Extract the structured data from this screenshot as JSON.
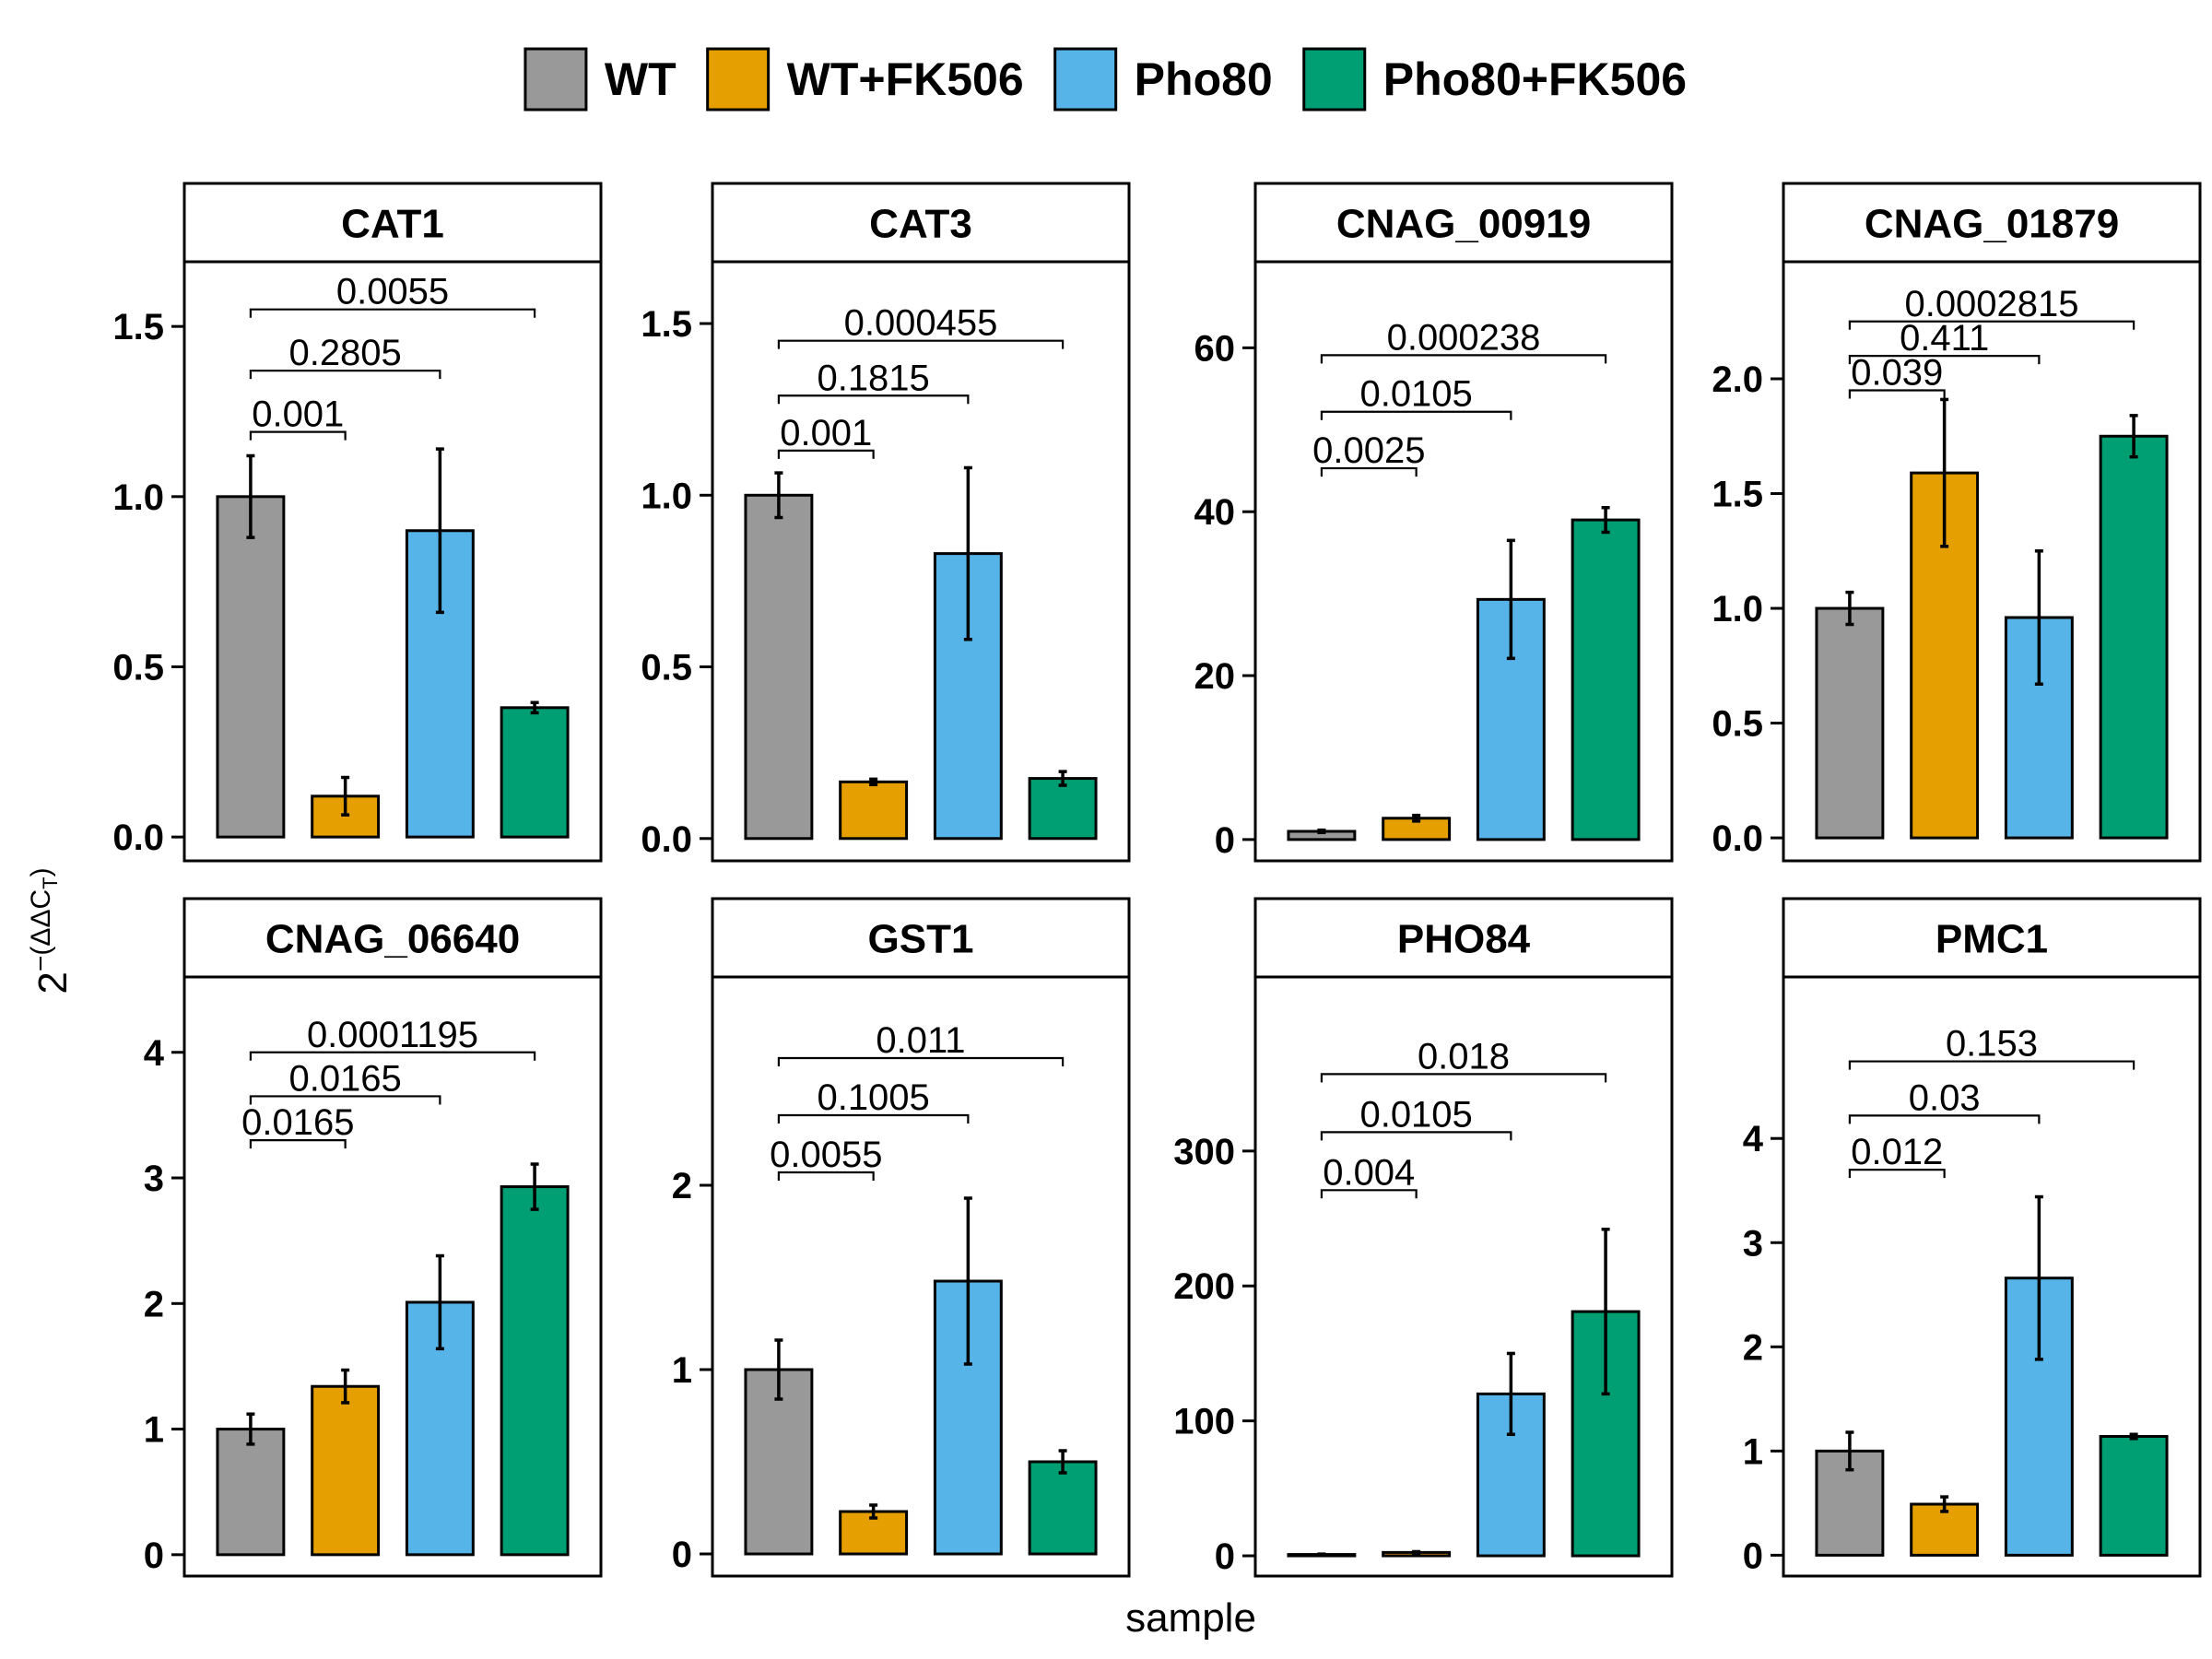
{
  "legend": {
    "items": [
      {
        "label": "WT",
        "color": "#999999"
      },
      {
        "label": "WT+FK506",
        "color": "#E69F00"
      },
      {
        "label": "Pho80",
        "color": "#56B4E9"
      },
      {
        "label": "Pho80+FK506",
        "color": "#009E73"
      }
    ]
  },
  "axes": {
    "xlabel": "sample",
    "ylabel_base": "2",
    "ylabel_exponent": "−(ΔΔC",
    "ylabel_subscript": "T",
    "ylabel_close": ")"
  },
  "chart_data": [
    {
      "type": "bar",
      "title": "CAT1",
      "categories": [
        "WT",
        "WT+FK506",
        "Pho80",
        "Pho80+FK506"
      ],
      "values": [
        1.0,
        0.12,
        0.9,
        0.38
      ],
      "errors": [
        0.12,
        0.055,
        0.24,
        0.015
      ],
      "ylim": [
        -0.07,
        1.69
      ],
      "yticks": [
        0.0,
        0.5,
        1.0,
        1.5
      ],
      "tick_labels": [
        "0.0",
        "0.5",
        "1.0",
        "1.5"
      ],
      "comparisons": [
        {
          "from": 0,
          "to": 1,
          "y": 1.19,
          "label": "0.001"
        },
        {
          "from": 0,
          "to": 2,
          "y": 1.37,
          "label": "0.2805"
        },
        {
          "from": 0,
          "to": 3,
          "y": 1.55,
          "label": "0.0055"
        }
      ]
    },
    {
      "type": "bar",
      "title": "CAT3",
      "categories": [
        "WT",
        "WT+FK506",
        "Pho80",
        "Pho80+FK506"
      ],
      "values": [
        1.0,
        0.165,
        0.83,
        0.175
      ],
      "errors": [
        0.065,
        0.008,
        0.25,
        0.02
      ],
      "ylim": [
        -0.065,
        1.68
      ],
      "yticks": [
        0.0,
        0.5,
        1.0,
        1.5
      ],
      "tick_labels": [
        "0.0",
        "0.5",
        "1.0",
        "1.5"
      ],
      "comparisons": [
        {
          "from": 0,
          "to": 1,
          "y": 1.13,
          "label": "0.001"
        },
        {
          "from": 0,
          "to": 2,
          "y": 1.29,
          "label": "0.1815"
        },
        {
          "from": 0,
          "to": 3,
          "y": 1.45,
          "label": "0.000455"
        }
      ]
    },
    {
      "type": "bar",
      "title": "CNAG_00919",
      "categories": [
        "WT",
        "WT+FK506",
        "Pho80",
        "Pho80+FK506"
      ],
      "values": [
        1.0,
        2.6,
        29.3,
        39.0
      ],
      "errors": [
        0.15,
        0.35,
        7.2,
        1.5
      ],
      "ylim": [
        -2.6,
        70.5
      ],
      "yticks": [
        0,
        20,
        40,
        60
      ],
      "tick_labels": [
        "0",
        "20",
        "40",
        "60"
      ],
      "comparisons": [
        {
          "from": 0,
          "to": 1,
          "y": 45.3,
          "label": "0.0025"
        },
        {
          "from": 0,
          "to": 2,
          "y": 52.2,
          "label": "0.0105"
        },
        {
          "from": 0,
          "to": 3,
          "y": 59.1,
          "label": "0.000238"
        }
      ]
    },
    {
      "type": "bar",
      "title": "CNAG_01879",
      "categories": [
        "WT",
        "WT+FK506",
        "Pho80",
        "Pho80+FK506"
      ],
      "values": [
        1.0,
        1.59,
        0.96,
        1.75
      ],
      "errors": [
        0.07,
        0.32,
        0.29,
        0.09
      ],
      "ylim": [
        -0.1,
        2.51
      ],
      "yticks": [
        0.0,
        0.5,
        1.0,
        1.5,
        2.0
      ],
      "tick_labels": [
        "0.0",
        "0.5",
        "1.0",
        "1.5",
        "2.0"
      ],
      "comparisons": [
        {
          "from": 0,
          "to": 1,
          "y": 1.95,
          "label": "0.039"
        },
        {
          "from": 0,
          "to": 2,
          "y": 2.1,
          "label": "0.411"
        },
        {
          "from": 0,
          "to": 3,
          "y": 2.25,
          "label": "0.0002815"
        }
      ]
    },
    {
      "type": "bar",
      "title": "CNAG_06640",
      "categories": [
        "WT",
        "WT+FK506",
        "Pho80",
        "Pho80+FK506"
      ],
      "values": [
        1.0,
        1.34,
        2.01,
        2.93
      ],
      "errors": [
        0.12,
        0.13,
        0.37,
        0.18
      ],
      "ylim": [
        -0.17,
        4.6
      ],
      "yticks": [
        0,
        1,
        2,
        3,
        4
      ],
      "tick_labels": [
        "0",
        "1",
        "2",
        "3",
        "4"
      ],
      "comparisons": [
        {
          "from": 0,
          "to": 1,
          "y": 3.3,
          "label": "0.0165"
        },
        {
          "from": 0,
          "to": 2,
          "y": 3.65,
          "label": "0.0165"
        },
        {
          "from": 0,
          "to": 3,
          "y": 4.0,
          "label": "0.0001195"
        }
      ]
    },
    {
      "type": "bar",
      "title": "GST1",
      "categories": [
        "WT",
        "WT+FK506",
        "Pho80",
        "Pho80+FK506"
      ],
      "values": [
        1.0,
        0.23,
        1.48,
        0.5
      ],
      "errors": [
        0.16,
        0.035,
        0.45,
        0.06
      ],
      "ylim": [
        -0.12,
        3.13
      ],
      "yticks": [
        0,
        1,
        2
      ],
      "tick_labels": [
        "0",
        "1",
        "2"
      ],
      "comparisons": [
        {
          "from": 0,
          "to": 1,
          "y": 2.07,
          "label": "0.0055"
        },
        {
          "from": 0,
          "to": 2,
          "y": 2.38,
          "label": "0.1005"
        },
        {
          "from": 0,
          "to": 3,
          "y": 2.69,
          "label": "0.011"
        }
      ]
    },
    {
      "type": "bar",
      "title": "PHO84",
      "categories": [
        "WT",
        "WT+FK506",
        "Pho80",
        "Pho80+FK506"
      ],
      "values": [
        1.0,
        2.5,
        120.0,
        181.0
      ],
      "errors": [
        0.3,
        0.6,
        30.0,
        61.0
      ],
      "ylim": [
        -15.0,
        429.0
      ],
      "yticks": [
        0,
        100,
        200,
        300
      ],
      "tick_labels": [
        "0",
        "100",
        "200",
        "300"
      ],
      "comparisons": [
        {
          "from": 0,
          "to": 1,
          "y": 271.0,
          "label": "0.004"
        },
        {
          "from": 0,
          "to": 2,
          "y": 314.0,
          "label": "0.0105"
        },
        {
          "from": 0,
          "to": 3,
          "y": 357.0,
          "label": "0.018"
        }
      ]
    },
    {
      "type": "bar",
      "title": "PMC1",
      "categories": [
        "WT",
        "WT+FK506",
        "Pho80",
        "Pho80+FK506"
      ],
      "values": [
        1.0,
        0.49,
        2.66,
        1.14
      ],
      "errors": [
        0.18,
        0.07,
        0.78,
        0.02
      ],
      "ylim": [
        -0.2,
        5.55
      ],
      "yticks": [
        0,
        1,
        2,
        3,
        4
      ],
      "tick_labels": [
        "0",
        "1",
        "2",
        "3",
        "4"
      ],
      "comparisons": [
        {
          "from": 0,
          "to": 1,
          "y": 3.7,
          "label": "0.012"
        },
        {
          "from": 0,
          "to": 2,
          "y": 4.22,
          "label": "0.03"
        },
        {
          "from": 0,
          "to": 3,
          "y": 4.74,
          "label": "0.153"
        }
      ]
    }
  ]
}
